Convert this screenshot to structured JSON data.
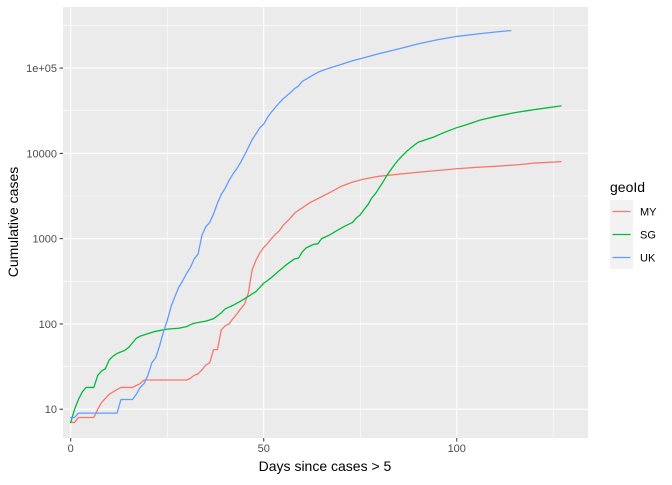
{
  "chart_data": {
    "type": "line",
    "title": "",
    "xlabel": "Days since cases > 5",
    "ylabel": "Cumulative cases",
    "xlim": [
      -2,
      134
    ],
    "ylim": [
      4.6,
      520000
    ],
    "yscale": "log10",
    "x_ticks": [
      0,
      50,
      100
    ],
    "x_tick_labels": [
      "0",
      "50",
      "100"
    ],
    "y_ticks": [
      10,
      100,
      1000,
      10000,
      100000
    ],
    "y_tick_labels": [
      "10",
      "100",
      "1000",
      "10000",
      "1e+05"
    ],
    "grid": true,
    "legend": {
      "title": "geoId",
      "position": "right"
    },
    "colors": {
      "panel": "#EBEBEB",
      "grid": "#FFFFFF",
      "text_dark": "#000000",
      "tick_text": "#4D4D4D"
    },
    "series": [
      {
        "name": "MY",
        "color": "#F8766D",
        "points": [
          [
            0,
            7
          ],
          [
            1,
            7
          ],
          [
            2,
            8
          ],
          [
            5,
            8
          ],
          [
            6,
            8
          ],
          [
            7,
            10
          ],
          [
            8,
            12
          ],
          [
            10,
            15
          ],
          [
            12,
            17
          ],
          [
            13,
            18
          ],
          [
            14,
            18
          ],
          [
            15,
            18
          ],
          [
            16,
            18
          ],
          [
            17,
            19
          ],
          [
            18,
            20
          ],
          [
            19,
            22
          ],
          [
            20,
            22
          ],
          [
            24,
            22
          ],
          [
            27,
            22
          ],
          [
            30,
            22
          ],
          [
            31,
            23
          ],
          [
            32,
            25
          ],
          [
            33,
            26
          ],
          [
            34,
            29
          ],
          [
            35,
            33
          ],
          [
            36,
            35
          ],
          [
            37,
            50
          ],
          [
            38,
            50
          ],
          [
            39,
            85
          ],
          [
            40,
            95
          ],
          [
            41,
            100
          ],
          [
            42,
            115
          ],
          [
            43,
            130
          ],
          [
            44,
            150
          ],
          [
            45,
            170
          ],
          [
            46,
            230
          ],
          [
            47,
            430
          ],
          [
            48,
            560
          ],
          [
            49,
            680
          ],
          [
            50,
            790
          ],
          [
            51,
            880
          ],
          [
            52,
            1000
          ],
          [
            53,
            1120
          ],
          [
            54,
            1230
          ],
          [
            55,
            1430
          ],
          [
            56,
            1580
          ],
          [
            57,
            1760
          ],
          [
            58,
            2000
          ],
          [
            60,
            2300
          ],
          [
            62,
            2650
          ],
          [
            65,
            3100
          ],
          [
            68,
            3650
          ],
          [
            70,
            4100
          ],
          [
            73,
            4600
          ],
          [
            76,
            5000
          ],
          [
            80,
            5400
          ],
          [
            85,
            5700
          ],
          [
            90,
            6000
          ],
          [
            95,
            6300
          ],
          [
            100,
            6600
          ],
          [
            105,
            6850
          ],
          [
            110,
            7050
          ],
          [
            115,
            7300
          ],
          [
            118,
            7500
          ],
          [
            120,
            7700
          ],
          [
            125,
            7900
          ],
          [
            127,
            8000
          ]
        ]
      },
      {
        "name": "SG",
        "color": "#00BA38",
        "points": [
          [
            0,
            7
          ],
          [
            1,
            10
          ],
          [
            2,
            13
          ],
          [
            3,
            16
          ],
          [
            4,
            18
          ],
          [
            5,
            18
          ],
          [
            6,
            18
          ],
          [
            7,
            25
          ],
          [
            8,
            28
          ],
          [
            9,
            30
          ],
          [
            10,
            38
          ],
          [
            11,
            42
          ],
          [
            12,
            45
          ],
          [
            13,
            47
          ],
          [
            14,
            49
          ],
          [
            15,
            53
          ],
          [
            16,
            60
          ],
          [
            17,
            68
          ],
          [
            18,
            72
          ],
          [
            20,
            77
          ],
          [
            22,
            82
          ],
          [
            25,
            87
          ],
          [
            28,
            89
          ],
          [
            30,
            93
          ],
          [
            31,
            98
          ],
          [
            32,
            102
          ],
          [
            35,
            108
          ],
          [
            37,
            115
          ],
          [
            39,
            135
          ],
          [
            40,
            150
          ],
          [
            42,
            165
          ],
          [
            44,
            185
          ],
          [
            46,
            210
          ],
          [
            48,
            240
          ],
          [
            50,
            300
          ],
          [
            52,
            350
          ],
          [
            54,
            420
          ],
          [
            56,
            500
          ],
          [
            58,
            580
          ],
          [
            59,
            590
          ],
          [
            60,
            700
          ],
          [
            61,
            780
          ],
          [
            62,
            820
          ],
          [
            63,
            860
          ],
          [
            64,
            870
          ],
          [
            65,
            1000
          ],
          [
            67,
            1100
          ],
          [
            69,
            1250
          ],
          [
            71,
            1400
          ],
          [
            73,
            1550
          ],
          [
            74,
            1750
          ],
          [
            75,
            1900
          ],
          [
            76,
            2200
          ],
          [
            77,
            2500
          ],
          [
            78,
            3000
          ],
          [
            79,
            3400
          ],
          [
            80,
            4000
          ],
          [
            81,
            4700
          ],
          [
            82,
            5600
          ],
          [
            83,
            6500
          ],
          [
            84,
            7500
          ],
          [
            85,
            8500
          ],
          [
            86,
            9500
          ],
          [
            87,
            10500
          ],
          [
            88,
            11500
          ],
          [
            89,
            12500
          ],
          [
            90,
            13500
          ],
          [
            92,
            14500
          ],
          [
            94,
            15500
          ],
          [
            96,
            17000
          ],
          [
            98,
            18500
          ],
          [
            100,
            20000
          ],
          [
            103,
            22000
          ],
          [
            106,
            24500
          ],
          [
            110,
            27000
          ],
          [
            115,
            30000
          ],
          [
            120,
            32500
          ],
          [
            127,
            36000
          ]
        ]
      },
      {
        "name": "UK",
        "color": "#619CFF",
        "points": [
          [
            0,
            8
          ],
          [
            1,
            8
          ],
          [
            2,
            9
          ],
          [
            3,
            9
          ],
          [
            5,
            9
          ],
          [
            7,
            9
          ],
          [
            9,
            9
          ],
          [
            11,
            9
          ],
          [
            12,
            9
          ],
          [
            13,
            13
          ],
          [
            14,
            13
          ],
          [
            15,
            13
          ],
          [
            16,
            13
          ],
          [
            17,
            15
          ],
          [
            18,
            18
          ],
          [
            19,
            20
          ],
          [
            20,
            25
          ],
          [
            21,
            35
          ],
          [
            22,
            40
          ],
          [
            23,
            55
          ],
          [
            24,
            80
          ],
          [
            25,
            110
          ],
          [
            26,
            160
          ],
          [
            27,
            210
          ],
          [
            28,
            270
          ],
          [
            29,
            320
          ],
          [
            30,
            390
          ],
          [
            31,
            460
          ],
          [
            32,
            580
          ],
          [
            33,
            660
          ],
          [
            34,
            1100
          ],
          [
            35,
            1380
          ],
          [
            36,
            1550
          ],
          [
            37,
            1950
          ],
          [
            38,
            2600
          ],
          [
            39,
            3300
          ],
          [
            40,
            3900
          ],
          [
            41,
            4800
          ],
          [
            42,
            5700
          ],
          [
            43,
            6600
          ],
          [
            44,
            7800
          ],
          [
            45,
            9500
          ],
          [
            46,
            11700
          ],
          [
            47,
            14500
          ],
          [
            48,
            17000
          ],
          [
            49,
            20000
          ],
          [
            50,
            22000
          ],
          [
            51,
            26500
          ],
          [
            52,
            30500
          ],
          [
            53,
            34500
          ],
          [
            54,
            39000
          ],
          [
            55,
            43500
          ],
          [
            56,
            47500
          ],
          [
            57,
            52000
          ],
          [
            58,
            57500
          ],
          [
            59,
            61500
          ],
          [
            60,
            70000
          ],
          [
            61,
            74000
          ],
          [
            62,
            79000
          ],
          [
            63,
            84000
          ],
          [
            64,
            89000
          ],
          [
            65,
            93000
          ],
          [
            67,
            100000
          ],
          [
            70,
            110000
          ],
          [
            73,
            122000
          ],
          [
            76,
            132000
          ],
          [
            80,
            148000
          ],
          [
            85,
            168000
          ],
          [
            90,
            192000
          ],
          [
            95,
            215000
          ],
          [
            100,
            235000
          ],
          [
            105,
            250000
          ],
          [
            110,
            265000
          ],
          [
            114,
            275000
          ]
        ]
      }
    ]
  }
}
